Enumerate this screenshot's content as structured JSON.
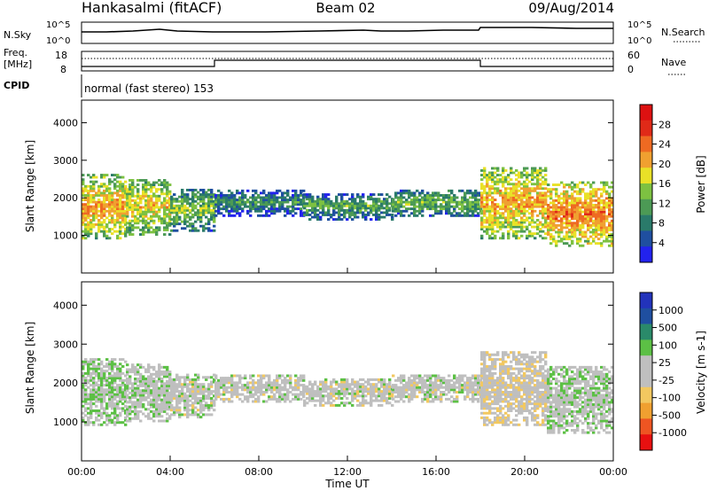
{
  "header": {
    "station": "Hankasalmi (fitACF)",
    "beam": "Beam 02",
    "date": "09/Aug/2014"
  },
  "noise_panel": {
    "left_label": "N.Sky",
    "right_label": "N.Search",
    "left_ticks": [
      "10^5",
      "10^0"
    ],
    "right_ticks": [
      "10^5",
      "10^0"
    ]
  },
  "freq_panel": {
    "left_label_1": "Freq.",
    "left_label_2": "[MHz]",
    "right_label": "Nave",
    "left_ticks": [
      "18",
      "8"
    ],
    "right_ticks": [
      "60",
      "0"
    ]
  },
  "cpid": {
    "label": "CPID",
    "mode": "normal (fast stereo) 153"
  },
  "x_axis": {
    "title": "Time UT",
    "ticks": [
      "00:00",
      "04:00",
      "08:00",
      "12:00",
      "16:00",
      "20:00",
      "00:00"
    ]
  },
  "colors": {
    "power_scale": [
      "#2222ee",
      "#1f4fa0",
      "#2a7a6a",
      "#4c9a55",
      "#7dc141",
      "#e9e127",
      "#f0a030",
      "#ee6a22",
      "#e02a18",
      "#dd1111"
    ],
    "velocity_scale": [
      "#e81010",
      "#ee5522",
      "#f0a030",
      "#f2c860",
      "#bfbfbf",
      "#bfbfbf",
      "#5cc045",
      "#2a8a6a",
      "#1f4fa0",
      "#2233bb"
    ]
  },
  "chart_data": [
    {
      "type": "heatmap",
      "panel": "power",
      "xlabel": "Time UT",
      "ylabel": "Slant Range [km]",
      "xlim": [
        0,
        24
      ],
      "ylim": [
        0,
        4600
      ],
      "yticks": [
        "1000",
        "2000",
        "3000",
        "4000"
      ],
      "ytick_values": [
        1000,
        2000,
        3000,
        4000
      ],
      "colorbar": {
        "label": "Power [dB]",
        "ticks": [
          "28",
          "24",
          "20",
          "16",
          "12",
          "8",
          "4"
        ],
        "tick_values": [
          28,
          24,
          20,
          16,
          12,
          8,
          4
        ],
        "range": [
          0,
          30
        ]
      },
      "echo_bands": [
        {
          "t0": 0.0,
          "t1": 2.0,
          "r0": 900,
          "r1": 2600,
          "value": 20
        },
        {
          "t0": 2.0,
          "t1": 4.0,
          "r0": 1000,
          "r1": 2500,
          "value": 18
        },
        {
          "t0": 4.0,
          "t1": 6.0,
          "r0": 1100,
          "r1": 2200,
          "value": 14
        },
        {
          "t0": 6.0,
          "t1": 10.0,
          "r0": 1500,
          "r1": 2200,
          "value": 10
        },
        {
          "t0": 10.0,
          "t1": 14.0,
          "r0": 1400,
          "r1": 2100,
          "value": 12
        },
        {
          "t0": 14.0,
          "t1": 18.0,
          "r0": 1500,
          "r1": 2200,
          "value": 13
        },
        {
          "t0": 18.0,
          "t1": 21.0,
          "r0": 900,
          "r1": 2800,
          "value": 20
        },
        {
          "t0": 21.0,
          "t1": 24.0,
          "r0": 700,
          "r1": 2400,
          "value": 22
        }
      ]
    },
    {
      "type": "heatmap",
      "panel": "velocity",
      "xlabel": "Time UT",
      "ylabel": "Slant Range [km]",
      "xlim": [
        0,
        24
      ],
      "ylim": [
        0,
        4600
      ],
      "yticks": [
        "1000",
        "2000",
        "3000",
        "4000"
      ],
      "ytick_values": [
        1000,
        2000,
        3000,
        4000
      ],
      "colorbar": {
        "label": "Velocity [m s-1]",
        "ticks": [
          "1000",
          "500",
          "100",
          "25",
          "-25",
          "-100",
          "-500",
          "-1000"
        ],
        "range": [
          -1000,
          1000
        ]
      },
      "echo_bands": [
        {
          "t0": 0.0,
          "t1": 2.0,
          "r0": 900,
          "r1": 2600,
          "value": 150
        },
        {
          "t0": 2.0,
          "t1": 4.0,
          "r0": 1000,
          "r1": 2500,
          "value": 60
        },
        {
          "t0": 4.0,
          "t1": 6.0,
          "r0": 1100,
          "r1": 2200,
          "value": 0
        },
        {
          "t0": 6.0,
          "t1": 10.0,
          "r0": 1500,
          "r1": 2200,
          "value": 0
        },
        {
          "t0": 10.0,
          "t1": 14.0,
          "r0": 1400,
          "r1": 2100,
          "value": 0
        },
        {
          "t0": 14.0,
          "t1": 18.0,
          "r0": 1500,
          "r1": 2200,
          "value": 0
        },
        {
          "t0": 18.0,
          "t1": 21.0,
          "r0": 900,
          "r1": 2800,
          "value": -60
        },
        {
          "t0": 21.0,
          "t1": 24.0,
          "r0": 700,
          "r1": 2400,
          "value": 80
        }
      ]
    }
  ]
}
